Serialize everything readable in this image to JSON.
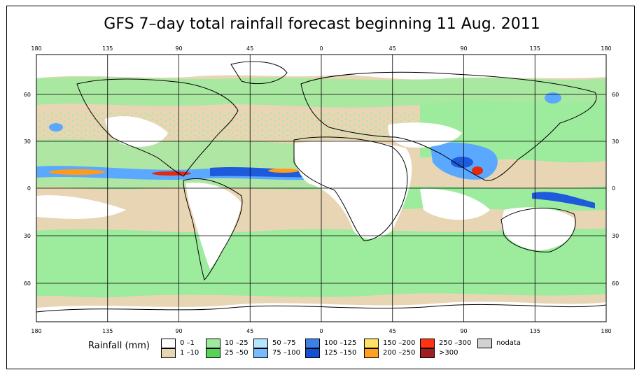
{
  "title": "GFS 7–day total rainfall forecast beginning 11 Aug. 2011",
  "map": {
    "lon_ticks": [
      "180",
      "135",
      "90",
      "45",
      "0",
      "45",
      "90",
      "135",
      "180"
    ],
    "lat_ticks": [
      "60",
      "30",
      "0",
      "30",
      "60"
    ],
    "colors": {
      "ocean_bg": "#e8d5b4",
      "green_light": "#9deb9d",
      "green": "#74dc74",
      "blue_light": "#a6dcff",
      "blue": "#5aa8ff",
      "blue_dark": "#1e5adc",
      "orange": "#ff9b1a",
      "red": "#e8280a",
      "coast": "#000000",
      "grid": "#000000"
    }
  },
  "legend": {
    "title": "Rainfall (mm)",
    "items": [
      {
        "label": "0 –1",
        "color": "#ffffff"
      },
      {
        "label": "1 –10",
        "color": "#e8d5b4"
      },
      {
        "label": "10 –25",
        "color": "#9deb9d"
      },
      {
        "label": "25 –50",
        "color": "#58d358"
      },
      {
        "label": "50 –75",
        "color": "#b4e6ff"
      },
      {
        "label": "75 –100",
        "color": "#78baff"
      },
      {
        "label": "100 –125",
        "color": "#3c82e6"
      },
      {
        "label": "125 –150",
        "color": "#1450d2"
      },
      {
        "label": "150 –200",
        "color": "#ffe164"
      },
      {
        "label": "200 –250",
        "color": "#ffa01e"
      },
      {
        "label": "250 –300",
        "color": "#ff3214"
      },
      {
        "label": ">300",
        "color": "#a01e1e"
      },
      {
        "label": "nodata",
        "color": "#d2d2d2"
      }
    ]
  }
}
